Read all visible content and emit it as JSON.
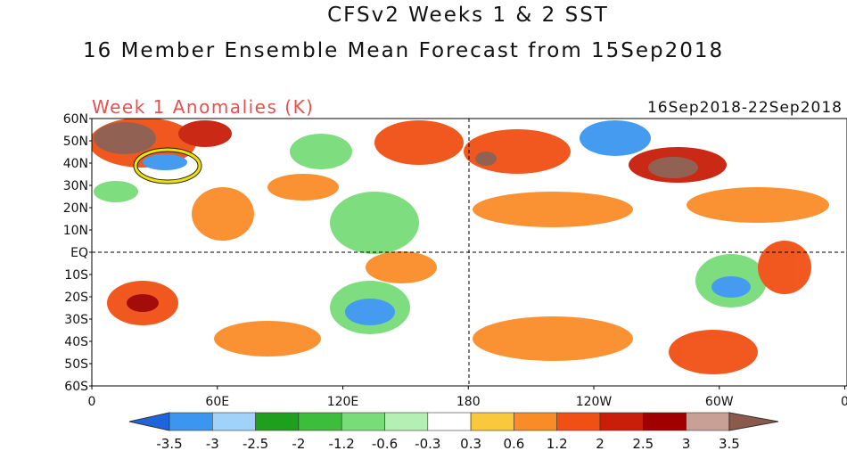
{
  "title": "CFSv2 Weeks 1 & 2 SST",
  "subtitle": "16 Member Ensemble Mean Forecast from 15Sep2018",
  "panel_label": "Week 1 Anomalies (K)",
  "date_range": "16Sep2018-22Sep2018",
  "lat_labels": [
    "60N",
    "50N",
    "40N",
    "30N",
    "20N",
    "10N",
    "EQ",
    "10S",
    "20S",
    "30S",
    "40S",
    "50S",
    "60S"
  ],
  "lon_labels": [
    "0",
    "60E",
    "120E",
    "180",
    "120W",
    "60W",
    "0"
  ],
  "colorbar": {
    "labels": [
      -3.5,
      -3,
      -2.5,
      -2,
      -1.2,
      -0.6,
      -0.3,
      0.3,
      0.6,
      1.2,
      2,
      2.5,
      3,
      3.5
    ],
    "colors": [
      "#1e64dc",
      "#3c96f0",
      "#a0d2fa",
      "#1ea01e",
      "#3cbe3c",
      "#78dc78",
      "#b4f0b4",
      "#ffffff",
      "#fac83c",
      "#fa8c28",
      "#f05014",
      "#c81e0a",
      "#a00000",
      "#c8a096",
      "#8c5a4b"
    ]
  }
}
